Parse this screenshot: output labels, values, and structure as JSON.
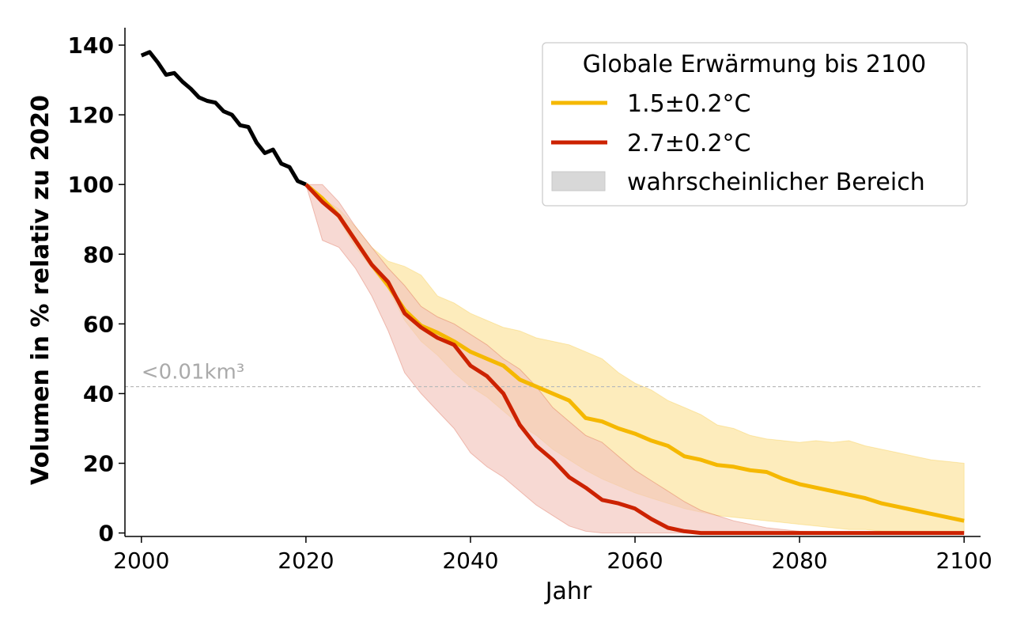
{
  "chart_data": {
    "type": "line",
    "xlabel": "Jahr",
    "ylabel": "Volumen in % relativ zu 2020",
    "xlim": [
      1998,
      2102
    ],
    "ylim": [
      -1,
      145
    ],
    "xticks": [
      "2000",
      "2020",
      "2040",
      "2060",
      "2080",
      "2100"
    ],
    "yticks": [
      "0",
      "20",
      "40",
      "60",
      "80",
      "100",
      "120",
      "140"
    ],
    "grid": false,
    "legend": {
      "title": "Globale Erwärmung bis 2100",
      "placement": "top-right",
      "entries": [
        "1.5±0.2°C",
        "2.7±0.2°C",
        "wahrscheinlicher Bereich"
      ]
    },
    "threshold": {
      "y": 42,
      "label": "<0.01km³"
    },
    "colors": {
      "historical": "#000000",
      "s15": "#f5b800",
      "s15_band": "#fde9b0",
      "s27": "#cc2200",
      "s27_band": "#f2c4bc",
      "range": "#d8d8d8",
      "threshold": "#bbbbbb"
    },
    "historical": {
      "x": [
        2000,
        2001,
        2002,
        2003,
        2004,
        2005,
        2006,
        2007,
        2008,
        2009,
        2010,
        2011,
        2012,
        2013,
        2014,
        2015,
        2016,
        2017,
        2018,
        2019,
        2020
      ],
      "y": [
        137,
        138,
        135,
        131.5,
        132,
        129.5,
        127.5,
        125,
        124,
        123.5,
        121,
        120,
        117,
        116.5,
        112,
        109,
        110,
        106,
        105,
        101,
        100
      ]
    },
    "series": [
      {
        "name": "1.5±0.2°C",
        "x": [
          2020,
          2022,
          2024,
          2026,
          2028,
          2030,
          2032,
          2034,
          2036,
          2038,
          2040,
          2042,
          2044,
          2046,
          2048,
          2050,
          2052,
          2054,
          2056,
          2058,
          2060,
          2062,
          2064,
          2066,
          2068,
          2070,
          2072,
          2074,
          2076,
          2078,
          2080,
          2082,
          2084,
          2086,
          2088,
          2090,
          2092,
          2094,
          2096,
          2098,
          2100
        ],
        "y": [
          100,
          96,
          91,
          84,
          77,
          71,
          64,
          59.5,
          57.5,
          55,
          52,
          50,
          48,
          44,
          42,
          40,
          38,
          33,
          32,
          30,
          28.5,
          26.5,
          25,
          22,
          21,
          19.5,
          19,
          18,
          17.5,
          15.5,
          14,
          13,
          12,
          11,
          10,
          8.5,
          7.5,
          6.5,
          5.5,
          4.5,
          3.5
        ],
        "lower": [
          100,
          96,
          90,
          82,
          76,
          70,
          61,
          55,
          51,
          46,
          42,
          39,
          35,
          31,
          28,
          24,
          21,
          18,
          15.5,
          13.5,
          11.5,
          10,
          8.5,
          7,
          6,
          5,
          4.5,
          4,
          3.5,
          3,
          2.5,
          2,
          1.5,
          1,
          1,
          0.5,
          0.5,
          0.3,
          0.2,
          0.2,
          0.2
        ],
        "upper": [
          100,
          96,
          93,
          88,
          82,
          78,
          76.5,
          74,
          68,
          66,
          63,
          61,
          59,
          58,
          56,
          55,
          54,
          52,
          50,
          46,
          43,
          41,
          38,
          36,
          34,
          31,
          30,
          28,
          27,
          26.5,
          26,
          26.5,
          26,
          26.5,
          25,
          24,
          23,
          22,
          21,
          20.5,
          20
        ]
      },
      {
        "name": "2.7±0.2°C",
        "x": [
          2020,
          2022,
          2024,
          2026,
          2028,
          2030,
          2032,
          2034,
          2036,
          2038,
          2040,
          2042,
          2044,
          2046,
          2048,
          2050,
          2052,
          2054,
          2056,
          2058,
          2060,
          2062,
          2064,
          2066,
          2068,
          2070,
          2072,
          2074,
          2076,
          2078,
          2080,
          2082,
          2084,
          2086,
          2088,
          2090,
          2092,
          2094,
          2096,
          2098,
          2100
        ],
        "y": [
          100,
          95,
          91,
          84,
          77,
          72,
          63,
          59,
          56,
          54,
          48,
          45,
          40,
          31,
          25,
          21,
          16,
          13,
          9.5,
          8.5,
          7,
          4,
          1.5,
          0.5,
          0,
          0,
          0,
          0,
          0,
          0,
          0,
          0,
          0,
          0,
          0,
          0,
          0,
          0,
          0,
          0,
          0
        ],
        "lower": [
          100,
          84,
          82,
          76,
          68,
          58,
          46,
          40,
          35,
          30,
          23,
          19,
          16,
          12,
          8,
          5,
          2,
          0.5,
          0,
          0,
          0,
          0,
          0,
          0,
          0,
          0,
          0,
          0,
          0,
          0,
          0,
          0,
          0,
          0,
          0,
          0,
          0,
          0,
          0,
          0,
          0
        ],
        "upper": [
          100,
          100,
          95,
          88,
          82,
          76,
          71,
          65,
          62,
          60,
          57,
          54,
          50,
          47,
          42,
          36,
          32,
          28,
          26,
          22,
          18,
          15,
          12,
          9,
          6.5,
          5,
          3.5,
          2.5,
          1.5,
          1,
          0.5,
          0.3,
          0.2,
          0,
          0,
          0,
          0,
          0,
          0,
          0,
          0
        ]
      }
    ]
  }
}
